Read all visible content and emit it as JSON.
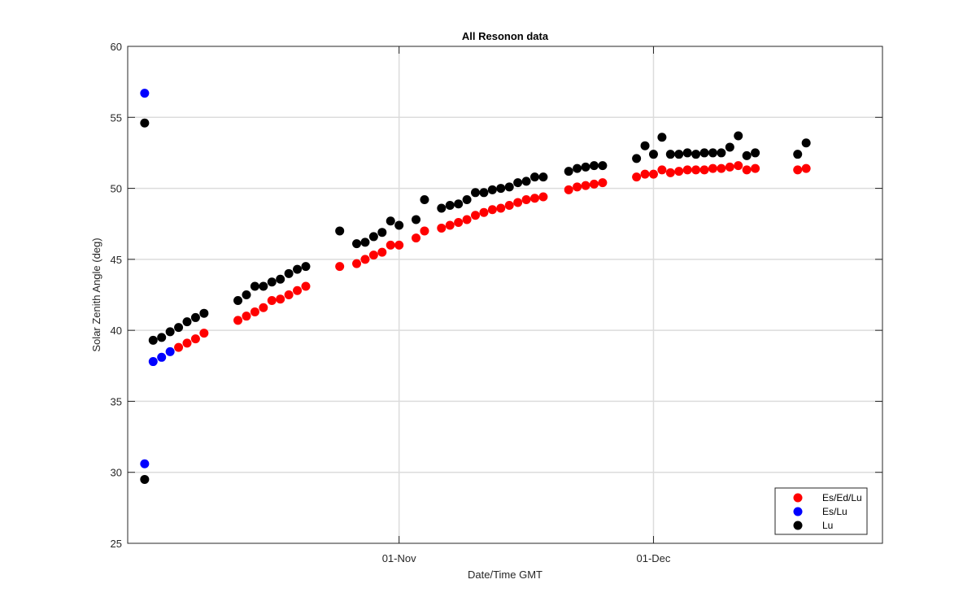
{
  "chart_data": {
    "type": "scatter",
    "title": "All Resonon data",
    "xlabel": "Date/Time GMT",
    "ylabel": "Solar Zenith Angle (deg)",
    "xlim": [
      "2016-09-30",
      "2016-12-28"
    ],
    "ylim": [
      25,
      60
    ],
    "yticks": [
      25,
      30,
      35,
      40,
      45,
      50,
      55,
      60
    ],
    "xticks": [
      {
        "date": "2016-11-01",
        "label": "01-Nov"
      },
      {
        "date": "2016-12-01",
        "label": "01-Dec"
      }
    ],
    "grid": true,
    "legend_position": "bottom-right",
    "series": [
      {
        "name": "Es/Ed/Lu",
        "color": "#ff0000",
        "points": [
          [
            "2016-10-06",
            38.8
          ],
          [
            "2016-10-07",
            39.1
          ],
          [
            "2016-10-08",
            39.4
          ],
          [
            "2016-10-09",
            39.8
          ],
          [
            "2016-10-13",
            40.7
          ],
          [
            "2016-10-14",
            41.0
          ],
          [
            "2016-10-15",
            41.3
          ],
          [
            "2016-10-16",
            41.6
          ],
          [
            "2016-10-17",
            42.1
          ],
          [
            "2016-10-18",
            42.2
          ],
          [
            "2016-10-19",
            42.5
          ],
          [
            "2016-10-20",
            42.8
          ],
          [
            "2016-10-21",
            43.1
          ],
          [
            "2016-10-25",
            44.5
          ],
          [
            "2016-10-27",
            44.7
          ],
          [
            "2016-10-28",
            45.0
          ],
          [
            "2016-10-29",
            45.3
          ],
          [
            "2016-10-30",
            45.5
          ],
          [
            "2016-10-31",
            46.0
          ],
          [
            "2016-11-01",
            46.0
          ],
          [
            "2016-11-03",
            46.5
          ],
          [
            "2016-11-04",
            47.0
          ],
          [
            "2016-11-06",
            47.2
          ],
          [
            "2016-11-07",
            47.4
          ],
          [
            "2016-11-08",
            47.6
          ],
          [
            "2016-11-09",
            47.8
          ],
          [
            "2016-11-10",
            48.1
          ],
          [
            "2016-11-11",
            48.3
          ],
          [
            "2016-11-12",
            48.5
          ],
          [
            "2016-11-13",
            48.6
          ],
          [
            "2016-11-14",
            48.8
          ],
          [
            "2016-11-15",
            49.0
          ],
          [
            "2016-11-16",
            49.2
          ],
          [
            "2016-11-17",
            49.3
          ],
          [
            "2016-11-18",
            49.4
          ],
          [
            "2016-11-21",
            49.9
          ],
          [
            "2016-11-22",
            50.1
          ],
          [
            "2016-11-23",
            50.2
          ],
          [
            "2016-11-24",
            50.3
          ],
          [
            "2016-11-25",
            50.4
          ],
          [
            "2016-11-29",
            50.8
          ],
          [
            "2016-11-30",
            51.0
          ],
          [
            "2016-12-01",
            51.0
          ],
          [
            "2016-12-02",
            51.3
          ],
          [
            "2016-12-03",
            51.1
          ],
          [
            "2016-12-04",
            51.2
          ],
          [
            "2016-12-05",
            51.3
          ],
          [
            "2016-12-06",
            51.3
          ],
          [
            "2016-12-07",
            51.3
          ],
          [
            "2016-12-08",
            51.4
          ],
          [
            "2016-12-09",
            51.4
          ],
          [
            "2016-12-10",
            51.5
          ],
          [
            "2016-12-11",
            51.6
          ],
          [
            "2016-12-12",
            51.3
          ],
          [
            "2016-12-13",
            51.4
          ],
          [
            "2016-12-18",
            51.3
          ],
          [
            "2016-12-19",
            51.4
          ]
        ]
      },
      {
        "name": "Es/Lu",
        "color": "#0000ff",
        "points": [
          [
            "2016-10-02",
            56.7
          ],
          [
            "2016-10-02",
            30.6
          ],
          [
            "2016-10-03",
            37.8
          ],
          [
            "2016-10-04",
            38.1
          ],
          [
            "2016-10-05",
            38.5
          ]
        ]
      },
      {
        "name": "Lu",
        "color": "#000000",
        "points": [
          [
            "2016-10-02",
            54.6
          ],
          [
            "2016-10-02",
            29.5
          ],
          [
            "2016-10-03",
            39.3
          ],
          [
            "2016-10-04",
            39.5
          ],
          [
            "2016-10-05",
            39.9
          ],
          [
            "2016-10-06",
            40.2
          ],
          [
            "2016-10-07",
            40.6
          ],
          [
            "2016-10-08",
            40.9
          ],
          [
            "2016-10-09",
            41.2
          ],
          [
            "2016-10-13",
            42.1
          ],
          [
            "2016-10-14",
            42.5
          ],
          [
            "2016-10-15",
            43.1
          ],
          [
            "2016-10-16",
            43.1
          ],
          [
            "2016-10-17",
            43.4
          ],
          [
            "2016-10-18",
            43.6
          ],
          [
            "2016-10-19",
            44.0
          ],
          [
            "2016-10-20",
            44.3
          ],
          [
            "2016-10-21",
            44.5
          ],
          [
            "2016-10-25",
            47.0
          ],
          [
            "2016-10-27",
            46.1
          ],
          [
            "2016-10-28",
            46.2
          ],
          [
            "2016-10-29",
            46.6
          ],
          [
            "2016-10-30",
            46.9
          ],
          [
            "2016-10-31",
            47.7
          ],
          [
            "2016-11-01",
            47.4
          ],
          [
            "2016-11-03",
            47.8
          ],
          [
            "2016-11-04",
            49.2
          ],
          [
            "2016-11-06",
            48.6
          ],
          [
            "2016-11-07",
            48.8
          ],
          [
            "2016-11-08",
            48.9
          ],
          [
            "2016-11-09",
            49.2
          ],
          [
            "2016-11-10",
            49.7
          ],
          [
            "2016-11-11",
            49.7
          ],
          [
            "2016-11-12",
            49.9
          ],
          [
            "2016-11-13",
            50.0
          ],
          [
            "2016-11-14",
            50.1
          ],
          [
            "2016-11-15",
            50.4
          ],
          [
            "2016-11-16",
            50.5
          ],
          [
            "2016-11-17",
            50.8
          ],
          [
            "2016-11-18",
            50.8
          ],
          [
            "2016-11-21",
            51.2
          ],
          [
            "2016-11-22",
            51.4
          ],
          [
            "2016-11-23",
            51.5
          ],
          [
            "2016-11-24",
            51.6
          ],
          [
            "2016-11-25",
            51.6
          ],
          [
            "2016-11-29",
            52.1
          ],
          [
            "2016-11-30",
            53.0
          ],
          [
            "2016-12-01",
            52.4
          ],
          [
            "2016-12-02",
            53.6
          ],
          [
            "2016-12-03",
            52.4
          ],
          [
            "2016-12-04",
            52.4
          ],
          [
            "2016-12-05",
            52.5
          ],
          [
            "2016-12-06",
            52.4
          ],
          [
            "2016-12-07",
            52.5
          ],
          [
            "2016-12-08",
            52.5
          ],
          [
            "2016-12-09",
            52.5
          ],
          [
            "2016-12-10",
            52.9
          ],
          [
            "2016-12-11",
            53.7
          ],
          [
            "2016-12-12",
            52.3
          ],
          [
            "2016-12-13",
            52.5
          ],
          [
            "2016-12-18",
            52.4
          ],
          [
            "2016-12-19",
            53.2
          ]
        ]
      }
    ]
  }
}
